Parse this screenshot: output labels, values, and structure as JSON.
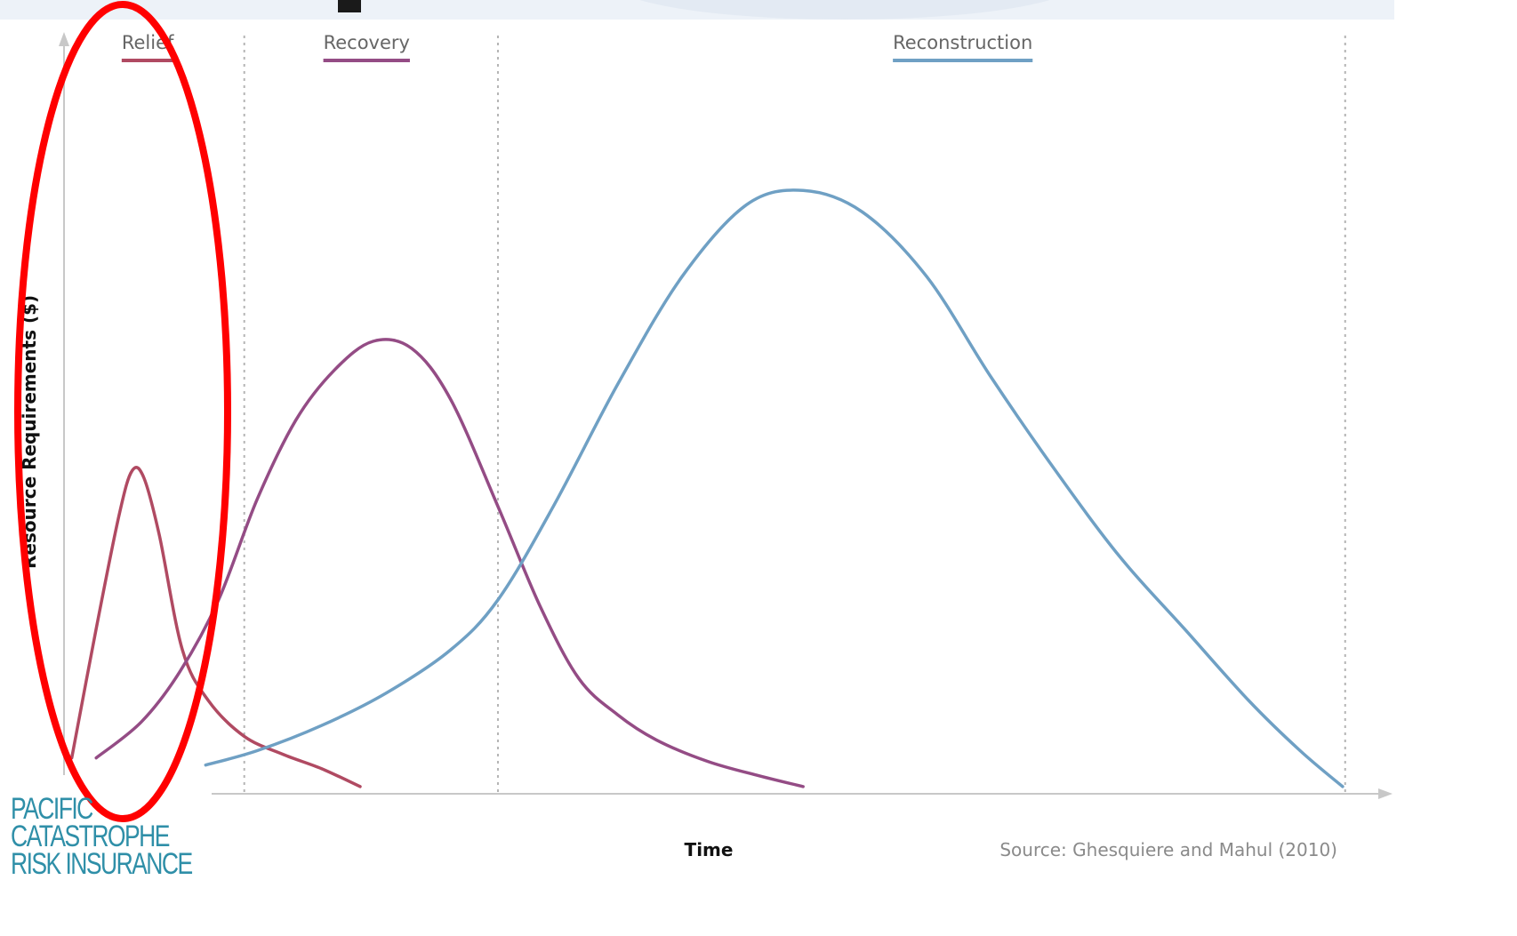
{
  "chart_data": {
    "type": "line",
    "xlabel": "Time",
    "ylabel": "Resource Requirements ($)",
    "source": "Source: Ghesquiere and Mahul (2010)",
    "xlim": [
      0,
      100
    ],
    "ylim": [
      0,
      100
    ],
    "phase_boundaries": [
      14,
      33.7,
      99.5
    ],
    "phase_labels": [
      {
        "label": "Relief",
        "color": "#b04a62",
        "x": 6.5
      },
      {
        "label": "Recovery",
        "color": "#944c85",
        "x": 23.5
      },
      {
        "label": "Reconstruction",
        "color": "#6fa0c4",
        "x": 69.8
      }
    ],
    "series": [
      {
        "name": "Relief",
        "color": "#b04a62",
        "x": [
          0.6,
          2.5,
          4.3,
          5.3,
          6.2,
          7.4,
          9.2,
          11.2,
          14,
          17,
          20,
          23
        ],
        "y": [
          5,
          23,
          39,
          45,
          44,
          36,
          20,
          13,
          8,
          5.5,
          3.5,
          1
        ]
      },
      {
        "name": "Recovery",
        "color": "#944c85",
        "x": [
          2.5,
          6,
          9,
          12,
          15,
          18,
          21,
          24,
          27,
          30,
          33.7,
          37,
          40,
          43,
          46,
          50,
          54,
          57.4
        ],
        "y": [
          5,
          10,
          17,
          27,
          41,
          52,
          59,
          63,
          62,
          55,
          40,
          26,
          16,
          11,
          7.5,
          4.5,
          2.5,
          1
        ]
      },
      {
        "name": "Reconstruction",
        "color": "#6fa0c4",
        "x": [
          11,
          15,
          20,
          25,
          30,
          33.7,
          38,
          43,
          48,
          53,
          57.4,
          62,
          67,
          72,
          77,
          82,
          87,
          92,
          96,
          99.3
        ],
        "y": [
          4,
          6,
          9.5,
          14,
          20,
          27,
          40,
          57,
          72,
          82,
          84,
          81,
          72,
          58,
          45,
          33,
          23,
          13,
          6,
          1
        ]
      }
    ]
  },
  "logo": {
    "lines": [
      "PACIFIC",
      "CATASTROPHE",
      "RISK INSURANCE"
    ]
  },
  "annotation": {
    "type": "ellipse",
    "color": "#ff0000",
    "target": "Relief"
  }
}
